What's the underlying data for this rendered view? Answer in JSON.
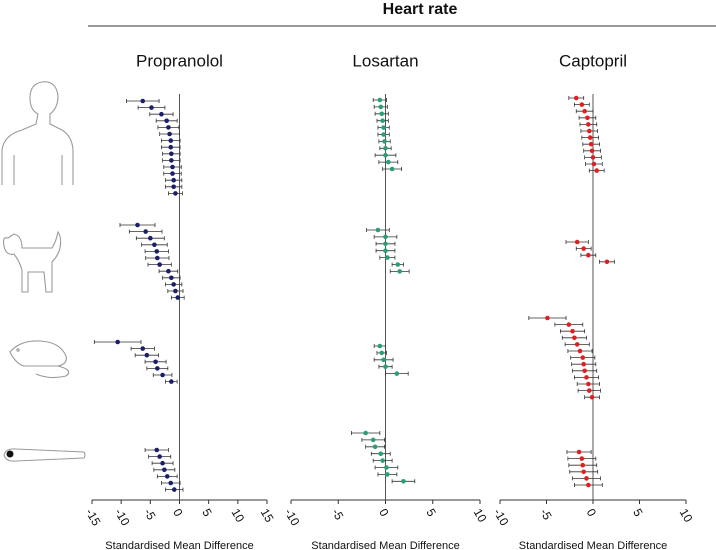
{
  "title": "Heart rate",
  "chart_data": [
    {
      "type": "forest",
      "title": "Propranolol",
      "xlabel": "Standardised Mean Difference",
      "color": "#1b1f6b",
      "xlim": [
        -15,
        15
      ],
      "xticks": [
        -15,
        -10,
        -5,
        0,
        5,
        10,
        15
      ],
      "groups": [
        {
          "values": [
            -6.3,
            -4.8,
            -3.1,
            -2.2,
            -1.9,
            -1.7,
            -1.5,
            -1.5,
            -1.4,
            -1.4,
            -1.2,
            -1.2,
            -1.0,
            -1.0,
            -0.7
          ],
          "errors": [
            2.8,
            2.3,
            2.0,
            1.8,
            1.8,
            1.7,
            1.6,
            1.6,
            1.5,
            1.5,
            1.5,
            1.5,
            1.4,
            1.4,
            1.2
          ]
        },
        {
          "values": [
            -7.2,
            -5.8,
            -5.0,
            -4.3,
            -3.9,
            -3.8,
            -3.4,
            -1.9,
            -1.4,
            -1.0,
            -0.7,
            -0.3
          ],
          "errors": [
            3.0,
            2.8,
            2.4,
            2.2,
            2.0,
            2.0,
            2.0,
            1.6,
            1.5,
            1.4,
            1.3,
            1.1
          ]
        },
        {
          "values": [
            -10.6,
            -6.3,
            -5.6,
            -4.1,
            -3.8,
            -2.9,
            -1.4
          ],
          "errors": [
            4.0,
            2.0,
            2.0,
            1.8,
            1.8,
            1.6,
            1.0
          ]
        },
        {
          "values": [
            -3.9,
            -3.4,
            -2.9,
            -2.6,
            -2.1,
            -1.5,
            -0.9
          ],
          "errors": [
            2.0,
            1.9,
            1.8,
            1.8,
            1.7,
            1.6,
            1.5
          ]
        }
      ]
    },
    {
      "type": "forest",
      "title": "Losartan",
      "xlabel": "Standardised Mean Difference",
      "color": "#2a9d7a",
      "xlim": [
        -10,
        10
      ],
      "xticks": [
        -10,
        -5,
        0,
        5,
        10
      ],
      "groups": [
        {
          "values": [
            -0.6,
            -0.5,
            -0.4,
            -0.3,
            -0.2,
            -0.2,
            -0.1,
            0,
            0,
            0.3,
            0.7
          ],
          "errors": [
            0.7,
            0.7,
            0.7,
            0.6,
            0.6,
            0.6,
            0.6,
            0.6,
            1.1,
            1.0,
            1.0
          ]
        },
        {
          "values": [
            -0.8,
            0,
            0,
            0,
            0.2,
            1.3,
            1.5
          ],
          "errors": [
            1.2,
            1.2,
            1.0,
            1.0,
            0.8,
            0.6,
            1.0
          ]
        },
        {
          "values": [
            -0.6,
            -0.4,
            -0.2,
            0,
            1.2
          ],
          "errors": [
            0.6,
            0.5,
            1.0,
            0.7,
            1.2
          ]
        },
        {
          "values": [
            -2.1,
            -1.3,
            -1.1,
            -0.5,
            -0.3,
            0.1,
            0.2,
            1.9
          ],
          "errors": [
            1.5,
            1.2,
            1.0,
            1.0,
            1.0,
            1.2,
            1.0,
            1.2
          ]
        }
      ]
    },
    {
      "type": "forest",
      "title": "Captopril",
      "xlabel": "Standardised Mean Difference",
      "color": "#e02020",
      "xlim": [
        -10,
        10
      ],
      "xticks": [
        -10,
        -5,
        0,
        5,
        10
      ],
      "groups": [
        {
          "values": [
            -1.8,
            -1.2,
            -0.9,
            -0.6,
            -0.5,
            -0.4,
            -0.3,
            -0.2,
            -0.1,
            0,
            0.1,
            0.4
          ],
          "errors": [
            0.8,
            0.8,
            0.9,
            0.9,
            0.9,
            0.9,
            0.9,
            0.9,
            0.9,
            0.9,
            0.9,
            0.8
          ]
        },
        {
          "values": [
            -1.7,
            -1.0,
            -0.5,
            1.5
          ],
          "errors": [
            1.2,
            0.8,
            0.8,
            0.8
          ]
        },
        {
          "values": [
            -4.9,
            -2.6,
            -2.2,
            -2.0,
            -1.7,
            -1.4,
            -1.1,
            -1.0,
            -0.9,
            -0.7,
            -0.5,
            -0.4,
            -0.1
          ],
          "errors": [
            2.0,
            1.5,
            1.3,
            1.3,
            1.3,
            1.3,
            1.3,
            1.3,
            1.3,
            1.3,
            1.2,
            1.2,
            0.8
          ]
        },
        {
          "values": [
            -1.5,
            -1.2,
            -1.1,
            -1.0,
            -0.7,
            -0.5
          ],
          "errors": [
            1.3,
            1.5,
            1.5,
            1.5,
            1.5,
            1.5
          ]
        }
      ]
    }
  ]
}
